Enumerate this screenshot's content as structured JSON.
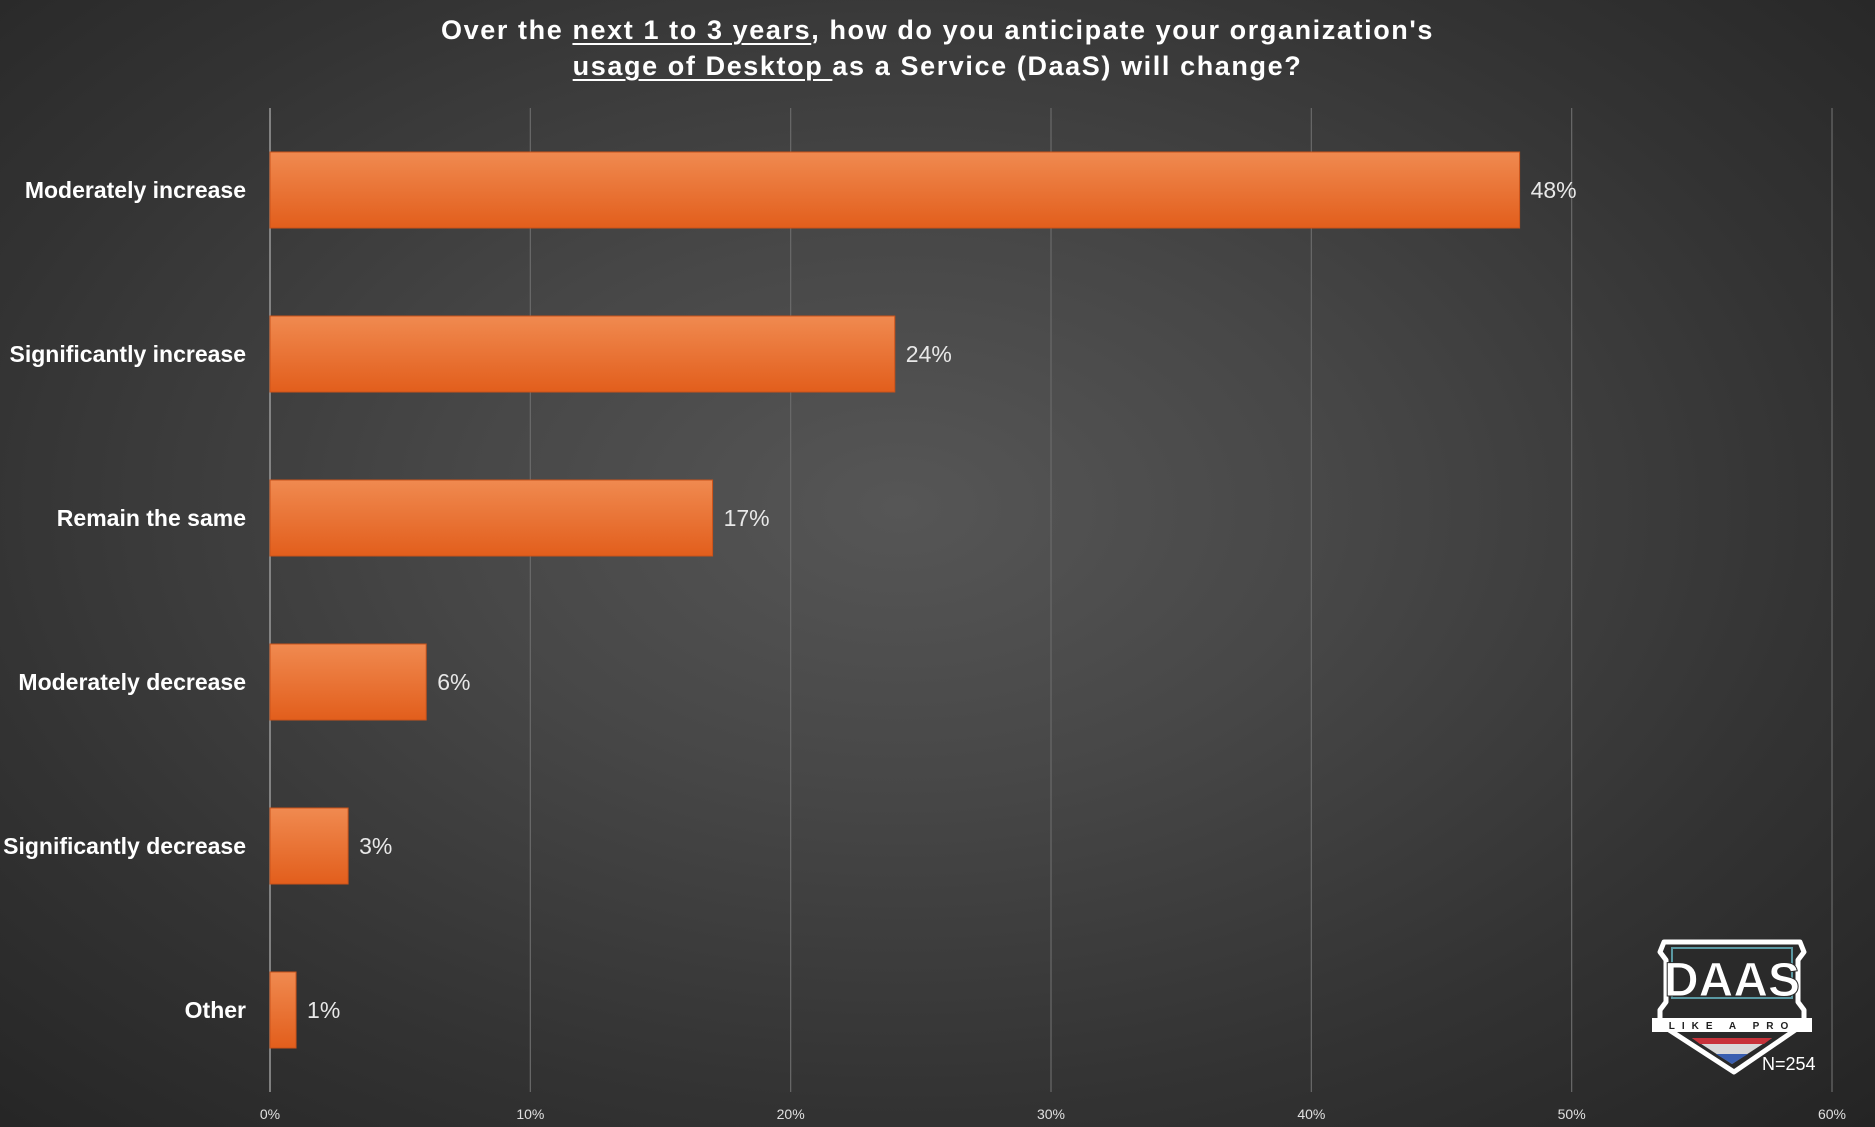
{
  "title": {
    "line1": [
      "Over the ",
      "next 1 to 3 years",
      ", how do you anticipate your organization's"
    ],
    "line2": [
      "usage of Desktop ",
      "as a Service (DaaS) will change?"
    ]
  },
  "chart_data": {
    "type": "bar",
    "orientation": "horizontal",
    "title": "Over the next 1 to 3 years, how do you anticipate your organization's usage of Desktop as a Service (DaaS) will change?",
    "categories": [
      "Moderately increase",
      "Significantly increase",
      "Remain the same",
      "Moderately decrease",
      "Significantly decrease",
      "Other"
    ],
    "values": [
      48,
      24,
      17,
      6,
      3,
      1
    ],
    "value_labels": [
      "48%",
      "24%",
      "17%",
      "6%",
      "3%",
      "1%"
    ],
    "xlabel": "",
    "ylabel": "",
    "xlim": [
      0,
      60
    ],
    "xticks": [
      0,
      10,
      20,
      30,
      40,
      50,
      60
    ],
    "xtick_labels": [
      "0%",
      "10%",
      "20%",
      "30%",
      "40%",
      "50%",
      "60%"
    ],
    "grid": "vertical",
    "legend": "none",
    "bar_color_top": "#f08a50",
    "bar_color_bottom": "#e25e1c"
  },
  "logo": {
    "text": "DAAS",
    "tagline": "LIKE A PRO"
  },
  "sample_size": "N=254",
  "colors": {
    "grid": "#6a6a6a",
    "axis": "#9a9a9a",
    "logo_frame": "#ffffff"
  }
}
